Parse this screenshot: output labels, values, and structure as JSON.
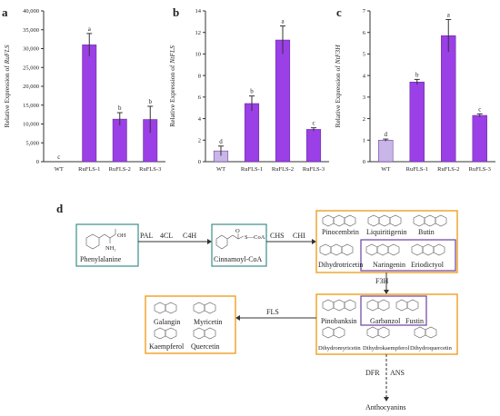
{
  "panels": {
    "a": "a",
    "b": "b",
    "c": "c",
    "d": "d"
  },
  "chart_data": [
    {
      "type": "bar",
      "panel": "a",
      "categories": [
        "WT",
        "RuFLS-1",
        "RuFLS-2",
        "RuFLS-3"
      ],
      "values": [
        0,
        31000,
        11300,
        11200
      ],
      "errors": [
        0,
        3000,
        1700,
        3500
      ],
      "significance": [
        "c",
        "a",
        "b",
        "b"
      ],
      "ylabel_prefix": "Relative Expression of ",
      "ylabel_gene": "RuFLS",
      "ylim": [
        0,
        40000
      ],
      "yticks": [
        "0",
        "5,000",
        "10,000",
        "15,000",
        "20,000",
        "25,000",
        "30,000",
        "35,000",
        "40,000"
      ],
      "colors": [
        "#c9b6e8",
        "#9b3fe6",
        "#9b3fe6",
        "#9b3fe6"
      ]
    },
    {
      "type": "bar",
      "panel": "b",
      "categories": [
        "WT",
        "RuFLS-1",
        "RuFLS-2",
        "RuFLS-3"
      ],
      "values": [
        1.0,
        5.4,
        11.3,
        3.0
      ],
      "errors": [
        0.45,
        0.7,
        1.3,
        0.15
      ],
      "significance": [
        "d",
        "b",
        "a",
        "c"
      ],
      "ylabel_prefix": "Relative Expression of ",
      "ylabel_gene": "NtFLS",
      "ylim": [
        0,
        14
      ],
      "yticks": [
        "0",
        "2",
        "4",
        "6",
        "8",
        "10",
        "12",
        "14"
      ],
      "colors": [
        "#c9b6e8",
        "#9b3fe6",
        "#9b3fe6",
        "#9b3fe6"
      ]
    },
    {
      "type": "bar",
      "panel": "c",
      "categories": [
        "WT",
        "RuFLS-1",
        "RuFLS-2",
        "RuFLS-3"
      ],
      "values": [
        1.0,
        3.7,
        5.85,
        2.15
      ],
      "errors": [
        0.05,
        0.12,
        0.75,
        0.07
      ],
      "significance": [
        "d",
        "b",
        "a",
        "c"
      ],
      "ylabel_prefix": "Relative Expression of ",
      "ylabel_gene": "NtF3H",
      "ylim": [
        0,
        7
      ],
      "yticks": [
        "0",
        "1",
        "2",
        "3",
        "4",
        "5",
        "6",
        "7"
      ],
      "colors": [
        "#c9b6e8",
        "#9b3fe6",
        "#9b3fe6",
        "#9b3fe6"
      ]
    }
  ],
  "pathway": {
    "compounds": {
      "phenylalanine": "Phenylalanine",
      "cinnamoyl": "Cinnamoyl-CoA",
      "pinocembrin": "Pinocembrin",
      "liquiritigenin": "Liquiritigenin",
      "butin": "Butin",
      "dihydrotricetin": "Dihydrotricetin",
      "naringenin": "Naringenin",
      "eriodictyol": "Eriodictyol",
      "pinobanksin": "Pinobanksin",
      "garbanzol": "Garbanzol",
      "fustin": "Fustin",
      "dihydromyricetin": "Dihydromyricetin",
      "dihydrokaempferol": "Dihydrokaempferol",
      "dihydroquercetin": "Dihydroquercetin",
      "galangin": "Galangin",
      "myricetin": "Myricetin",
      "kaempferol": "Kaempferol",
      "quercetin": "Quercetin",
      "anthocyanins": "Anthocyanins"
    },
    "enzymes": {
      "pal": "PAL",
      "c4l": "4CL",
      "c4h": "C4H",
      "chs": "CHS",
      "chi": "CHI",
      "f3h": "F3H",
      "fls": "FLS",
      "dfr": "DFR",
      "ans": "ANS"
    },
    "structure_labels": {
      "oh": "OH",
      "nh2": "NH₂",
      "o": "O",
      "scoa": "S—CoA"
    }
  }
}
